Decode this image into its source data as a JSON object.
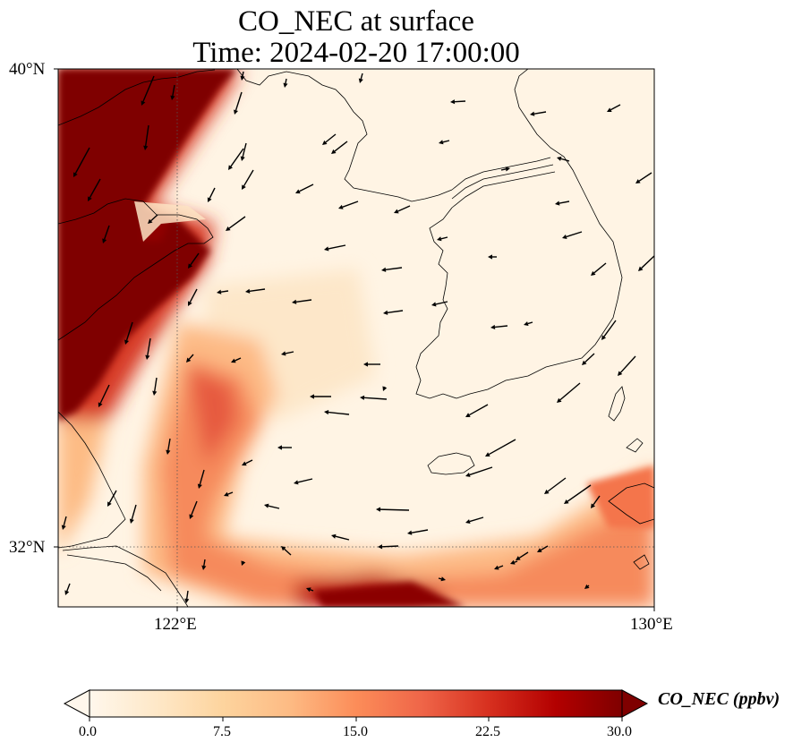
{
  "title": "CO_NEC at surface",
  "subtitle": "Time: 2024-02-20 17:00:00",
  "axes": {
    "lat_ticks": [
      "40°N",
      "32°N"
    ],
    "lon_ticks": [
      "122°E",
      "130°E"
    ],
    "lat_range": [
      31,
      40
    ],
    "lon_range": [
      120,
      130
    ]
  },
  "colorbar": {
    "label": "CO_NEC (ppbv)",
    "ticks": [
      "0.0",
      "7.5",
      "15.0",
      "22.5",
      "30.0"
    ],
    "range": [
      0,
      30
    ],
    "colormap": "OrRd",
    "colors": [
      "#fff7ec",
      "#fee8c8",
      "#fdd49e",
      "#fdbb84",
      "#fc8d59",
      "#ef6548",
      "#d7301f",
      "#b30000",
      "#7f0000"
    ],
    "extend": "both"
  },
  "features": {
    "coastline_color": "#000000",
    "gridline_style": "dotted",
    "wind_vectors": "black arrows"
  }
}
